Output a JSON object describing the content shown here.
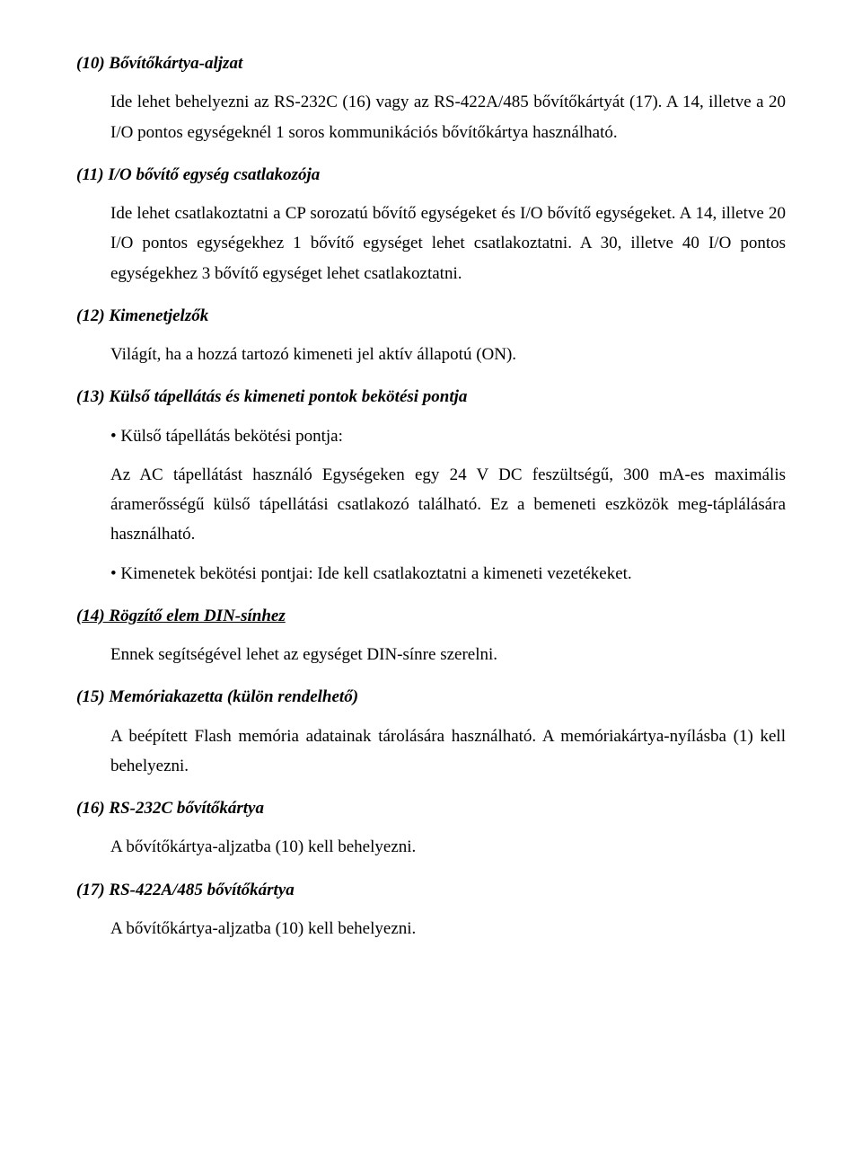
{
  "sections": {
    "s10": {
      "heading": "(10) Bővítőkártya-aljzat",
      "body": "Ide lehet behelyezni az RS-232C (16) vagy az RS-422A/485 bővítőkártyát (17). A 14, illetve a 20 I/O pontos egységeknél 1 soros kommunikációs bővítőkártya használható."
    },
    "s11": {
      "heading": "(11) I/O bővítő egység csatlakozója",
      "body": "Ide lehet csatlakoztatni a CP sorozatú bővítő egységeket és I/O bővítő egységeket. A 14, illetve 20 I/O pontos egységekhez 1 bővítő egységet lehet csatlakoztatni. A 30, illetve 40 I/O pontos egységekhez 3 bővítő egységet lehet csatlakoztatni."
    },
    "s12": {
      "heading": "(12) Kimenetjelzők",
      "body": "Világít, ha a hozzá tartozó kimeneti jel aktív állapotú (ON)."
    },
    "s13": {
      "heading": "(13) Külső tápellátás és kimeneti pontok bekötési pontja",
      "bullet1": "• Külső tápellátás bekötési pontja:",
      "body": "Az AC tápellátást használó Egységeken egy 24 V DC feszültségű, 300 mA-es maximális áramerősségű külső tápellátási csatlakozó található. Ez a bemeneti eszközök meg-táplálására használható.",
      "bullet2": "• Kimenetek bekötési pontjai: Ide kell csatlakoztatni a kimeneti vezetékeket."
    },
    "s14": {
      "heading": "(14) Rögzítő elem DIN-sínhez",
      "body": "Ennek segítségével lehet az egységet DIN-sínre szerelni."
    },
    "s15": {
      "heading": "(15) Memóriakazetta (külön rendelhető)",
      "body": "A beépített Flash memória adatainak tárolására használható. A memóriakártya-nyílásba (1) kell behelyezni."
    },
    "s16": {
      "heading": "(16) RS-232C bővítőkártya",
      "body": "A bővítőkártya-aljzatba (10) kell behelyezni."
    },
    "s17": {
      "heading": "(17) RS-422A/485 bővítőkártya",
      "body": "A bővítőkártya-aljzatba (10) kell behelyezni."
    }
  }
}
